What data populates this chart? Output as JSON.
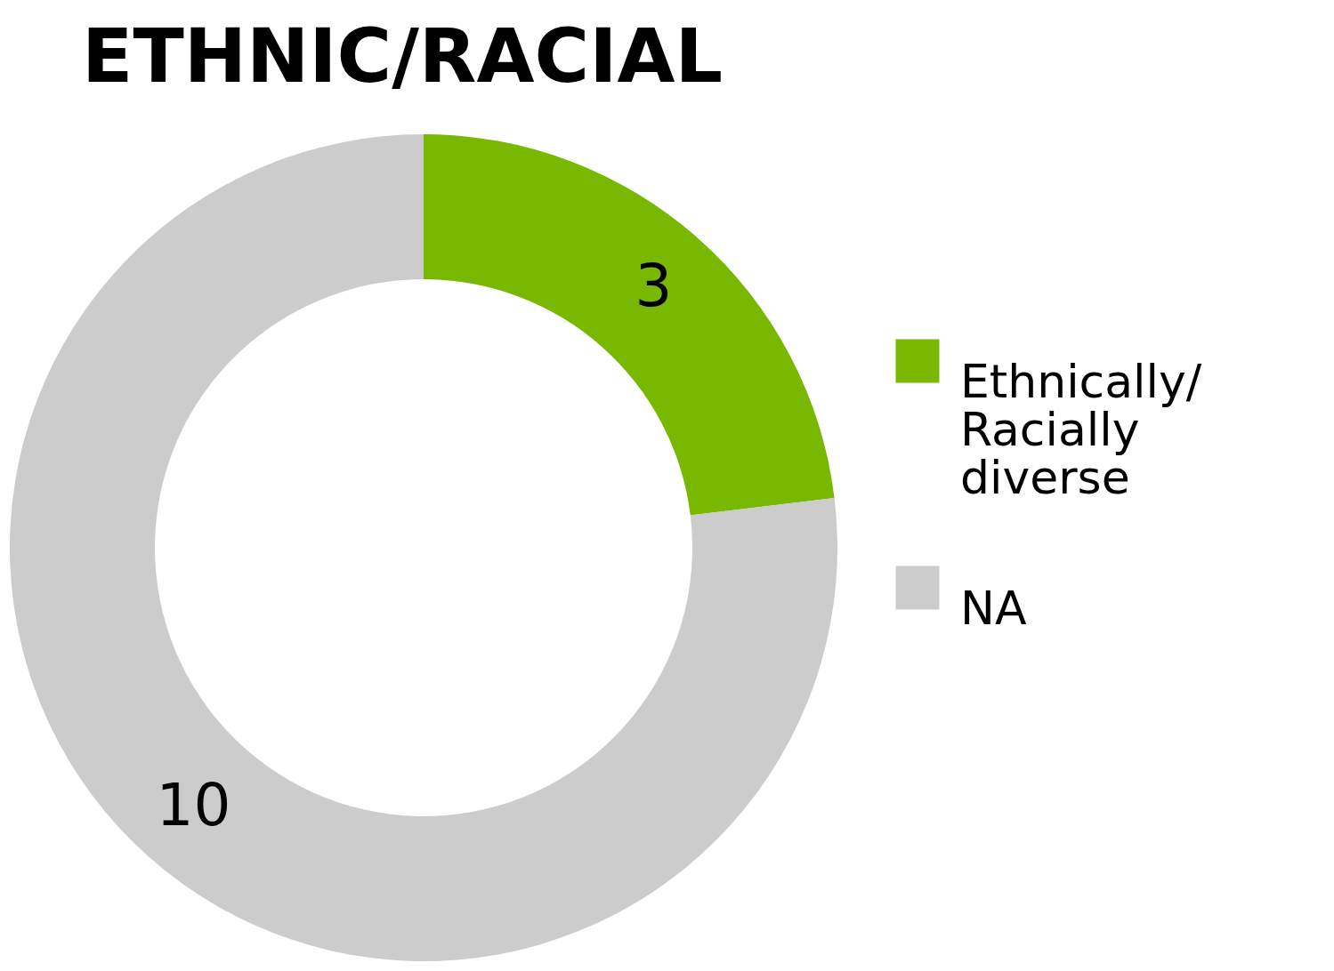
{
  "chart_data": {
    "type": "donut",
    "title": "ETHNIC/RACIAL",
    "categories": [
      "Ethnically/Racially diverse",
      "NA"
    ],
    "values": [
      3,
      10
    ],
    "colors": [
      "#78b800",
      "#cccccc"
    ],
    "data_labels": true,
    "legend": "right"
  }
}
